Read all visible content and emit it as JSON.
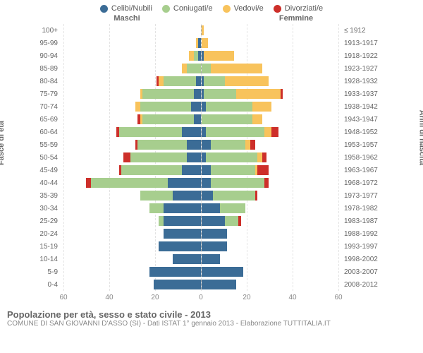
{
  "legend": [
    {
      "label": "Celibi/Nubili",
      "color": "#3b6c96"
    },
    {
      "label": "Coniugati/e",
      "color": "#a7ce8e"
    },
    {
      "label": "Vedovi/e",
      "color": "#f8c35c"
    },
    {
      "label": "Divorziati/e",
      "color": "#cd2f2a"
    }
  ],
  "gender_labels": {
    "male": "Maschi",
    "female": "Femmine"
  },
  "axis_titles": {
    "left": "Fasce di età",
    "right": "Anni di nascita"
  },
  "x_axis": {
    "max": 60,
    "ticks": [
      60,
      40,
      20,
      0,
      20,
      40,
      60
    ]
  },
  "colors": {
    "celibi": "#3b6c96",
    "coniugati": "#a7ce8e",
    "vedovi": "#f8c35c",
    "divorziati": "#cd2f2a",
    "grid": "#e3e3e3",
    "text": "#666666"
  },
  "rows": [
    {
      "age": "100+",
      "birth": "≤ 1912",
      "m": [
        0,
        0,
        0,
        0
      ],
      "f": [
        0,
        0,
        1,
        0
      ]
    },
    {
      "age": "95-99",
      "birth": "1913-1917",
      "m": [
        1,
        0,
        1,
        0
      ],
      "f": [
        0,
        0,
        3,
        0
      ]
    },
    {
      "age": "90-94",
      "birth": "1918-1922",
      "m": [
        1,
        2,
        2,
        0
      ],
      "f": [
        1,
        0,
        13,
        0
      ]
    },
    {
      "age": "85-89",
      "birth": "1923-1927",
      "m": [
        0,
        6,
        2,
        0
      ],
      "f": [
        0,
        4,
        22,
        0
      ]
    },
    {
      "age": "80-84",
      "birth": "1928-1932",
      "m": [
        2,
        14,
        2,
        1
      ],
      "f": [
        1,
        9,
        19,
        0
      ]
    },
    {
      "age": "75-79",
      "birth": "1933-1937",
      "m": [
        3,
        22,
        1,
        0
      ],
      "f": [
        1,
        14,
        19,
        1
      ]
    },
    {
      "age": "70-74",
      "birth": "1938-1942",
      "m": [
        4,
        22,
        2,
        0
      ],
      "f": [
        2,
        20,
        8,
        0
      ]
    },
    {
      "age": "65-69",
      "birth": "1943-1947",
      "m": [
        3,
        22,
        1,
        1
      ],
      "f": [
        0,
        22,
        4,
        0
      ]
    },
    {
      "age": "60-64",
      "birth": "1948-1952",
      "m": [
        8,
        27,
        0,
        1
      ],
      "f": [
        2,
        25,
        3,
        3
      ]
    },
    {
      "age": "55-59",
      "birth": "1953-1957",
      "m": [
        6,
        21,
        0,
        1
      ],
      "f": [
        4,
        15,
        2,
        2
      ]
    },
    {
      "age": "50-54",
      "birth": "1958-1962",
      "m": [
        6,
        24,
        0,
        3
      ],
      "f": [
        2,
        22,
        2,
        2
      ]
    },
    {
      "age": "45-49",
      "birth": "1963-1967",
      "m": [
        8,
        26,
        0,
        1
      ],
      "f": [
        4,
        19,
        1,
        5
      ]
    },
    {
      "age": "40-44",
      "birth": "1968-1972",
      "m": [
        14,
        33,
        0,
        2
      ],
      "f": [
        4,
        23,
        0,
        2
      ]
    },
    {
      "age": "35-39",
      "birth": "1973-1977",
      "m": [
        12,
        14,
        0,
        0
      ],
      "f": [
        5,
        18,
        0,
        1
      ]
    },
    {
      "age": "30-34",
      "birth": "1978-1982",
      "m": [
        16,
        6,
        0,
        0
      ],
      "f": [
        8,
        11,
        0,
        0
      ]
    },
    {
      "age": "25-29",
      "birth": "1983-1987",
      "m": [
        16,
        2,
        0,
        0
      ],
      "f": [
        10,
        6,
        0,
        1
      ]
    },
    {
      "age": "20-24",
      "birth": "1988-1992",
      "m": [
        16,
        0,
        0,
        0
      ],
      "f": [
        11,
        0,
        0,
        0
      ]
    },
    {
      "age": "15-19",
      "birth": "1993-1997",
      "m": [
        18,
        0,
        0,
        0
      ],
      "f": [
        11,
        0,
        0,
        0
      ]
    },
    {
      "age": "10-14",
      "birth": "1998-2002",
      "m": [
        12,
        0,
        0,
        0
      ],
      "f": [
        8,
        0,
        0,
        0
      ]
    },
    {
      "age": "5-9",
      "birth": "2003-2007",
      "m": [
        22,
        0,
        0,
        0
      ],
      "f": [
        18,
        0,
        0,
        0
      ]
    },
    {
      "age": "0-4",
      "birth": "2008-2012",
      "m": [
        20,
        0,
        0,
        0
      ],
      "f": [
        15,
        0,
        0,
        0
      ]
    }
  ],
  "footer": {
    "title": "Popolazione per età, sesso e stato civile - 2013",
    "subtitle": "COMUNE DI SAN GIOVANNI D'ASSO (SI) - Dati ISTAT 1° gennaio 2013 - Elaborazione TUTTITALIA.IT"
  }
}
